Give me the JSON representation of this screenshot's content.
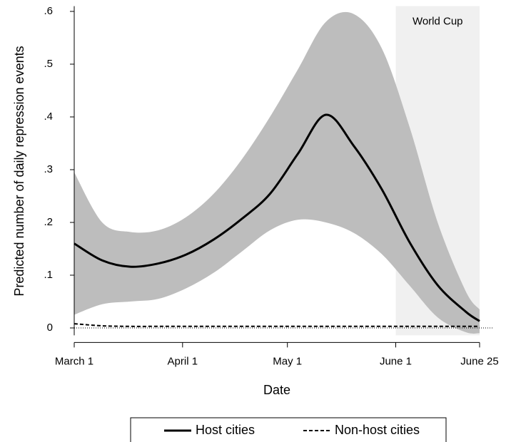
{
  "chart_data": {
    "type": "line",
    "y_label": "Predicted number of daily repression events",
    "x_label": "Date",
    "x": [
      0,
      8,
      16,
      24,
      32,
      40,
      48,
      56,
      64,
      72,
      80,
      88,
      96,
      104,
      112,
      116
    ],
    "xlim": [
      0,
      116
    ],
    "xticks": [
      {
        "value": 0,
        "label": "March 1"
      },
      {
        "value": 31,
        "label": "April 1"
      },
      {
        "value": 61,
        "label": "May 1"
      },
      {
        "value": 92,
        "label": "June 1"
      },
      {
        "value": 116,
        "label": "June 25"
      }
    ],
    "ylim": [
      -0.014,
      0.61
    ],
    "yticks": [
      0,
      {
        "value": 0.1,
        "label": ".1"
      },
      {
        "value": 0.2,
        "label": ".2"
      },
      {
        "value": 0.3,
        "label": ".3"
      },
      {
        "value": 0.4,
        "label": ".4"
      },
      {
        "value": 0.5,
        "label": ".5"
      },
      {
        "value": 0.6,
        "label": ".6"
      }
    ],
    "series": [
      {
        "name": "Host cities",
        "color": "#000000",
        "dash": "solid",
        "values": [
          0.16,
          0.128,
          0.116,
          0.122,
          0.139,
          0.168,
          0.207,
          0.254,
          0.33,
          0.404,
          0.345,
          0.263,
          0.162,
          0.081,
          0.031,
          0.013
        ]
      },
      {
        "name": "Non-host cities",
        "color": "#000000",
        "dash": "dashed",
        "values": [
          0.008,
          0.004,
          0.003,
          0.003,
          0.003,
          0.003,
          0.003,
          0.003,
          0.003,
          0.003,
          0.003,
          0.003,
          0.003,
          0.003,
          0.003,
          0.003
        ]
      }
    ],
    "band": {
      "color": "#bdbdbd",
      "upper": [
        0.295,
        0.2,
        0.182,
        0.185,
        0.21,
        0.255,
        0.32,
        0.4,
        0.49,
        0.58,
        0.595,
        0.53,
        0.38,
        0.2,
        0.07,
        0.035
      ],
      "lower": [
        0.025,
        0.045,
        0.05,
        0.055,
        0.075,
        0.105,
        0.145,
        0.185,
        0.205,
        0.2,
        0.18,
        0.14,
        0.08,
        0.02,
        -0.008,
        -0.01
      ]
    },
    "annotation": {
      "text": "World Cup",
      "x_range": [
        92,
        116
      ],
      "color": "#f0f0f0"
    },
    "reference_line": 0
  }
}
